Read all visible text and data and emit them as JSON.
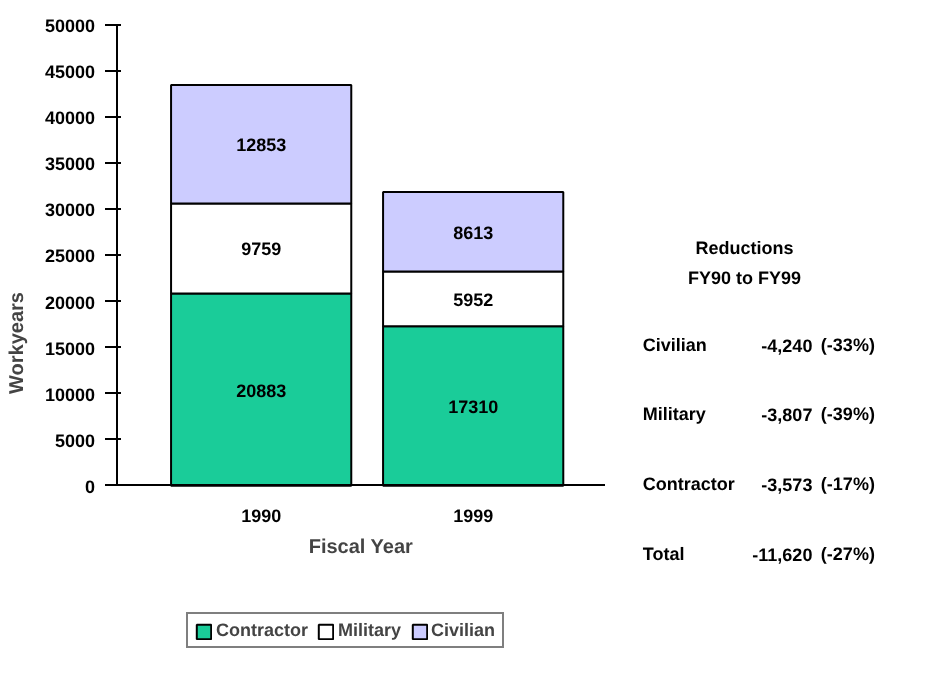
{
  "chart_data": {
    "type": "bar",
    "stacked": true,
    "xlabel": "Fiscal Year",
    "ylabel": "Workyears",
    "categories": [
      "1990",
      "1999"
    ],
    "series": [
      {
        "name": "Contractor",
        "color": "#1acc99",
        "values": [
          20883,
          17310
        ]
      },
      {
        "name": "Military",
        "color": "#ffffff",
        "values": [
          9759,
          5952
        ]
      },
      {
        "name": "Civilian",
        "color": "#ccccff",
        "values": [
          12853,
          8613
        ]
      }
    ],
    "ylim": [
      0,
      50000
    ],
    "yticks": [
      0,
      5000,
      10000,
      15000,
      20000,
      25000,
      30000,
      35000,
      40000,
      45000,
      50000
    ],
    "data_labels": true,
    "legend": "bottom",
    "grid": false,
    "annotations": [
      "Reductions",
      "FY90 to FY99",
      "Civilian",
      "-4,240",
      "(-33%)",
      "Military",
      "-3,807",
      "(-39%)",
      "Contractor",
      "-3,573",
      "(-17%)",
      "Total",
      "-11,620",
      "(-27%)"
    ]
  }
}
